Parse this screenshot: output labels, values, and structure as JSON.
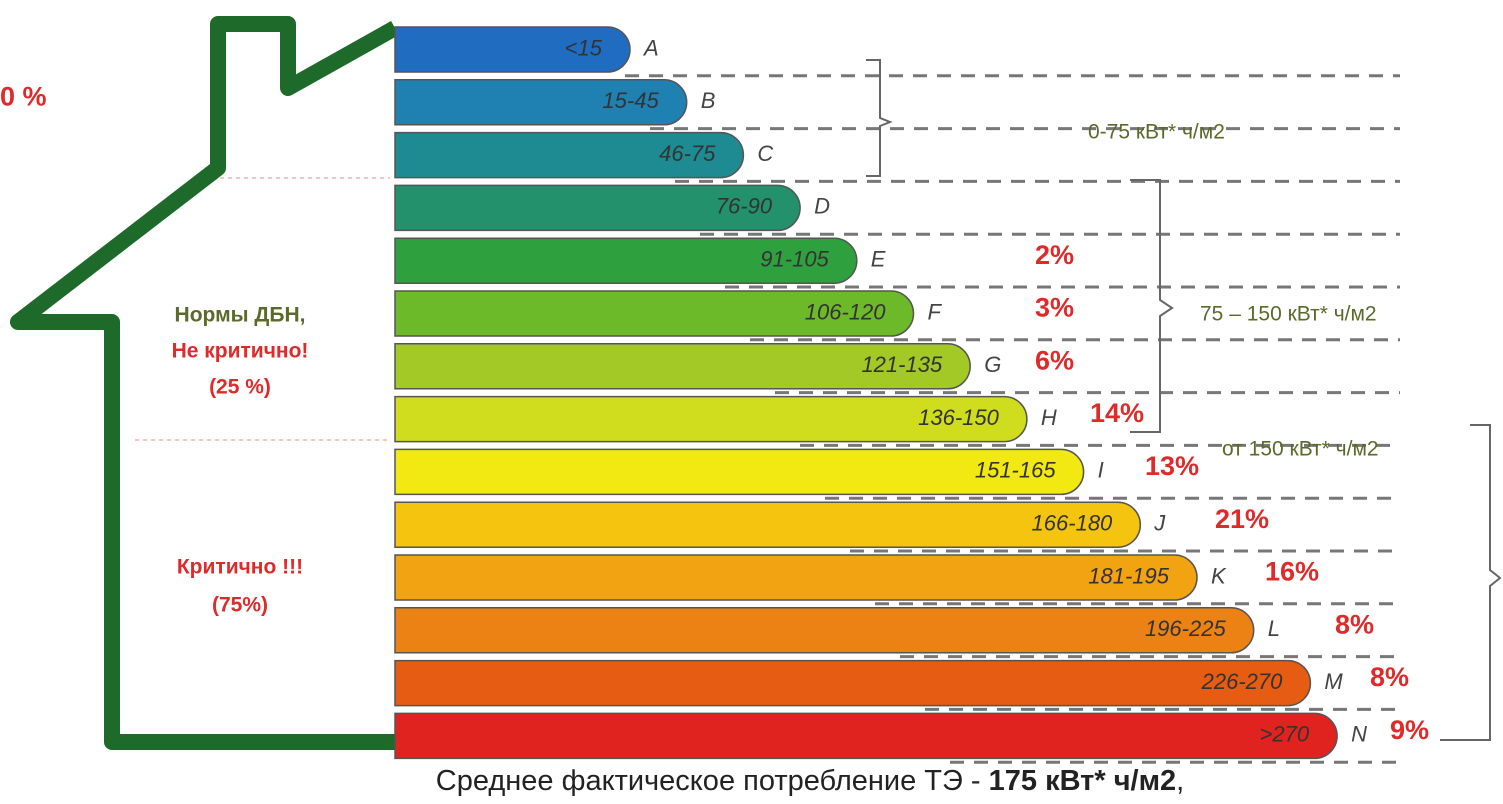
{
  "bands": [
    {
      "range": "<15",
      "letter": "A"
    },
    {
      "range": "15-45",
      "letter": "B",
      "percent": "0 %"
    },
    {
      "range": "46-75",
      "letter": "C"
    },
    {
      "range": "76-90",
      "letter": "D"
    },
    {
      "range": "91-105",
      "letter": "E",
      "percent": "2%"
    },
    {
      "range": "106-120",
      "letter": "F",
      "percent": "3%"
    },
    {
      "range": "121-135",
      "letter": "G",
      "percent": "6%"
    },
    {
      "range": "136-150",
      "letter": "H",
      "percent": "14%"
    },
    {
      "range": "151-165",
      "letter": "I",
      "percent": "13%"
    },
    {
      "range": "166-180",
      "letter": "J",
      "percent": "21%"
    },
    {
      "range": "181-195",
      "letter": "K",
      "percent": "16%"
    },
    {
      "range": "196-225",
      "letter": "L",
      "percent": "8%"
    },
    {
      "range": "226-270",
      "letter": "M",
      "percent": "8%"
    },
    {
      "range": ">270",
      "letter": "N",
      "percent": "9%"
    }
  ],
  "groups": [
    "0-75 кВт* ч/м2",
    "75 – 150 кВт* ч/м2",
    "от 150 кВт* ч/м2"
  ],
  "house": {
    "norm": [
      "Нормы ДБН,",
      "Не критично!",
      "(25 %)"
    ],
    "critical": [
      "Критично  !!!",
      "(75%)"
    ]
  },
  "footer": {
    "text": "Среднее фактическое потребление ТЭ  - ",
    "value": "175 кВт* ч/м2",
    "tail": ","
  }
}
